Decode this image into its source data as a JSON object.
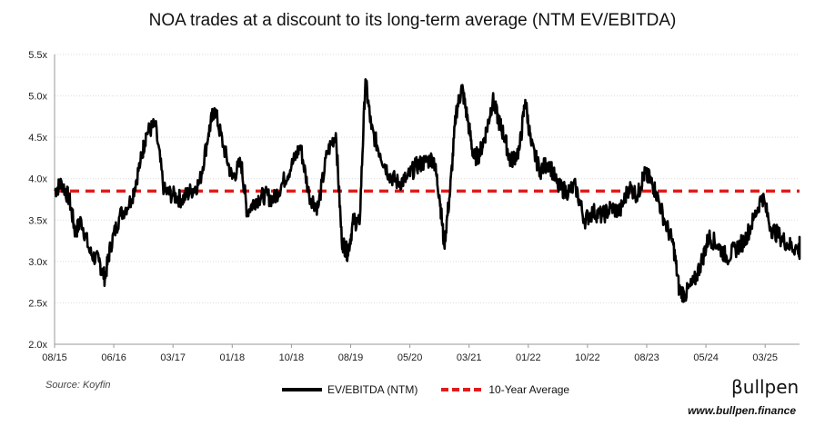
{
  "chart_data": {
    "type": "line",
    "title": "NOA trades at a discount to its long-term average (NTM EV/EBITDA)",
    "y_ticks": [
      "2.0x",
      "2.5x",
      "3.0x",
      "3.5x",
      "4.0x",
      "4.5x",
      "5.0x",
      "5.5x"
    ],
    "x_ticks": [
      "08/15",
      "06/16",
      "03/17",
      "01/18",
      "10/18",
      "08/19",
      "05/20",
      "03/21",
      "01/22",
      "10/22",
      "08/23",
      "05/24",
      "03/25"
    ],
    "ylim": [
      2.0,
      5.5
    ],
    "grid": "horizontal",
    "legend_position": "bottom-center",
    "series": [
      {
        "name": "EV/EBITDA (NTM)",
        "color": "#000000",
        "points": [
          [
            0.0,
            3.85
          ],
          [
            0.12,
            3.95
          ],
          [
            0.25,
            3.75
          ],
          [
            0.35,
            3.35
          ],
          [
            0.45,
            3.5
          ],
          [
            0.6,
            3.1
          ],
          [
            0.75,
            3.0
          ],
          [
            0.85,
            2.8
          ],
          [
            0.95,
            3.2
          ],
          [
            1.1,
            3.55
          ],
          [
            1.3,
            3.75
          ],
          [
            1.45,
            4.2
          ],
          [
            1.55,
            4.55
          ],
          [
            1.7,
            4.65
          ],
          [
            1.85,
            3.85
          ],
          [
            2.0,
            3.8
          ],
          [
            2.15,
            3.75
          ],
          [
            2.3,
            3.85
          ],
          [
            2.45,
            3.95
          ],
          [
            2.6,
            4.55
          ],
          [
            2.7,
            4.85
          ],
          [
            2.85,
            4.4
          ],
          [
            3.0,
            4.0
          ],
          [
            3.15,
            4.2
          ],
          [
            3.25,
            3.6
          ],
          [
            3.4,
            3.75
          ],
          [
            3.55,
            3.8
          ],
          [
            3.7,
            3.75
          ],
          [
            3.85,
            3.95
          ],
          [
            4.0,
            4.15
          ],
          [
            4.15,
            4.4
          ],
          [
            4.3,
            3.8
          ],
          [
            4.45,
            3.65
          ],
          [
            4.6,
            4.3
          ],
          [
            4.75,
            4.55
          ],
          [
            4.85,
            3.25
          ],
          [
            4.95,
            3.1
          ],
          [
            5.05,
            3.5
          ],
          [
            5.15,
            3.45
          ],
          [
            5.25,
            5.2
          ],
          [
            5.35,
            4.6
          ],
          [
            5.5,
            4.3
          ],
          [
            5.65,
            4.05
          ],
          [
            5.8,
            3.95
          ],
          [
            5.95,
            4.0
          ],
          [
            6.1,
            4.15
          ],
          [
            6.25,
            4.2
          ],
          [
            6.4,
            4.25
          ],
          [
            6.5,
            3.8
          ],
          [
            6.58,
            3.2
          ],
          [
            6.68,
            3.85
          ],
          [
            6.78,
            4.8
          ],
          [
            6.88,
            5.1
          ],
          [
            6.98,
            4.7
          ],
          [
            7.08,
            4.25
          ],
          [
            7.18,
            4.3
          ],
          [
            7.3,
            4.6
          ],
          [
            7.4,
            4.95
          ],
          [
            7.5,
            4.7
          ],
          [
            7.6,
            4.5
          ],
          [
            7.7,
            4.2
          ],
          [
            7.85,
            4.35
          ],
          [
            7.95,
            4.95
          ],
          [
            8.05,
            4.4
          ],
          [
            8.2,
            4.1
          ],
          [
            8.35,
            4.2
          ],
          [
            8.5,
            3.9
          ],
          [
            8.65,
            3.85
          ],
          [
            8.8,
            3.9
          ],
          [
            8.95,
            3.5
          ],
          [
            9.1,
            3.6
          ],
          [
            9.25,
            3.55
          ],
          [
            9.4,
            3.65
          ],
          [
            9.55,
            3.6
          ],
          [
            9.7,
            3.9
          ],
          [
            9.85,
            3.8
          ],
          [
            9.95,
            4.05
          ],
          [
            10.05,
            4.0
          ],
          [
            10.15,
            3.85
          ],
          [
            10.3,
            3.5
          ],
          [
            10.45,
            3.2
          ],
          [
            10.55,
            2.65
          ],
          [
            10.65,
            2.6
          ],
          [
            10.8,
            2.75
          ],
          [
            10.95,
            3.05
          ],
          [
            11.05,
            3.3
          ],
          [
            11.2,
            3.2
          ],
          [
            11.35,
            3.05
          ],
          [
            11.5,
            3.15
          ],
          [
            11.65,
            3.25
          ],
          [
            11.8,
            3.5
          ],
          [
            11.95,
            3.8
          ],
          [
            12.1,
            3.4
          ],
          [
            12.25,
            3.3
          ],
          [
            12.4,
            3.2
          ],
          [
            12.55,
            3.15
          ],
          [
            12.65,
            3.1
          ],
          [
            12.75,
            3.25
          ]
        ]
      },
      {
        "name": "10-Year Average",
        "color": "#e01b1b",
        "value": 3.85
      }
    ]
  },
  "source_note": "Source: Koyfin",
  "brand": {
    "logo_text": "βullpen",
    "url": "www.bullpen.finance"
  }
}
